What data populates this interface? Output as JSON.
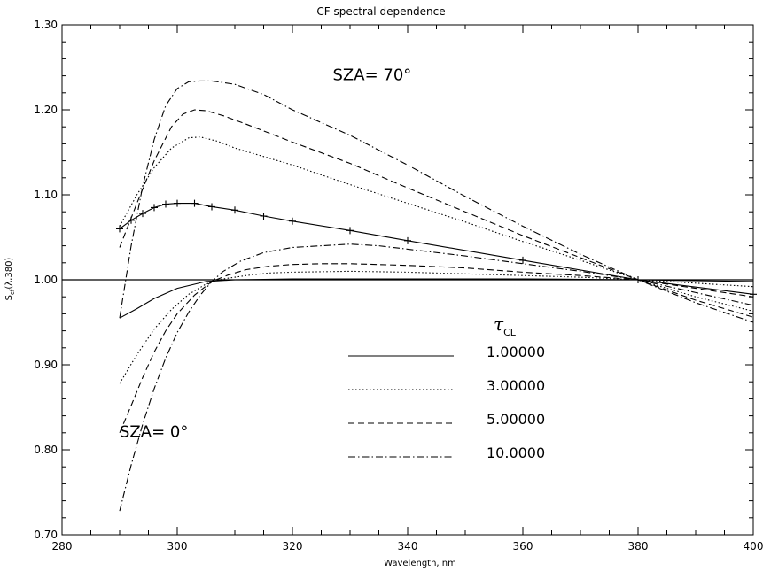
{
  "chart_data": {
    "type": "line",
    "title": "CF spectral dependence",
    "xlabel": "Wavelength, nm",
    "ylabel_main": "S",
    "ylabel_sub": "cf",
    "ylabel_rest": "(λ,380)",
    "xlim": [
      280,
      400
    ],
    "ylim": [
      0.7,
      1.3
    ],
    "xticks": [
      280,
      300,
      320,
      340,
      360,
      380,
      400
    ],
    "yticks": [
      0.7,
      0.8,
      0.9,
      1.0,
      1.1,
      1.2,
      1.3
    ],
    "ytick_labels": [
      "0.70",
      "0.80",
      "0.90",
      "1.00",
      "1.10",
      "1.20",
      "1.30"
    ],
    "reference_line": 1.0,
    "annotations": [
      {
        "text": "SZA= 70°",
        "x": 327,
        "y": 1.235
      },
      {
        "text": "SZA= 0°",
        "x": 290,
        "y": 0.815
      }
    ],
    "legend_title": "τ",
    "legend_title_sub": "CL",
    "series": [
      {
        "name": "1.00000",
        "style": "solid",
        "group": "SZA70",
        "markers": true,
        "x": [
          290,
          292,
          294,
          296,
          298,
          300,
          303,
          306,
          310,
          315,
          320,
          330,
          340,
          360,
          380,
          400
        ],
        "y": [
          1.06,
          1.07,
          1.078,
          1.085,
          1.089,
          1.09,
          1.09,
          1.086,
          1.082,
          1.075,
          1.069,
          1.058,
          1.046,
          1.023,
          1.0,
          0.983
        ]
      },
      {
        "name": "3.00000",
        "style": "dotted",
        "group": "SZA70",
        "x": [
          290,
          293,
          296,
          299,
          302,
          304,
          307,
          310,
          315,
          320,
          330,
          340,
          350,
          360,
          370,
          380,
          390,
          400
        ],
        "y": [
          1.063,
          1.1,
          1.132,
          1.155,
          1.167,
          1.168,
          1.163,
          1.155,
          1.145,
          1.135,
          1.112,
          1.09,
          1.068,
          1.045,
          1.023,
          1.0,
          0.98,
          0.963
        ]
      },
      {
        "name": "5.00000",
        "style": "dashed",
        "group": "SZA70",
        "x": [
          290,
          293,
          296,
          299,
          301,
          303,
          305,
          308,
          312,
          320,
          330,
          340,
          350,
          360,
          370,
          380,
          390,
          400
        ],
        "y": [
          1.038,
          1.09,
          1.14,
          1.18,
          1.195,
          1.2,
          1.199,
          1.193,
          1.183,
          1.162,
          1.137,
          1.108,
          1.08,
          1.052,
          1.026,
          1.0,
          0.976,
          0.956
        ]
      },
      {
        "name": "10.0000",
        "style": "dashdot",
        "group": "SZA70",
        "x": [
          290,
          292,
          294,
          296,
          298,
          300,
          302,
          304,
          306,
          310,
          315,
          320,
          330,
          340,
          350,
          360,
          370,
          380,
          390,
          400
        ],
        "y": [
          0.955,
          1.04,
          1.11,
          1.165,
          1.205,
          1.225,
          1.233,
          1.234,
          1.234,
          1.23,
          1.218,
          1.2,
          1.17,
          1.135,
          1.098,
          1.063,
          1.03,
          1.0,
          0.973,
          0.95
        ]
      },
      {
        "name": "1.00000",
        "style": "solid",
        "group": "SZA0",
        "x": [
          290,
          293,
          296,
          300,
          305,
          310,
          320,
          340,
          360,
          380,
          390,
          400
        ],
        "y": [
          0.955,
          0.966,
          0.978,
          0.99,
          0.998,
          1.0,
          1.001,
          1.001,
          1.001,
          1.0,
          0.999,
          0.998
        ]
      },
      {
        "name": "3.00000",
        "style": "dotted",
        "group": "SZA0",
        "x": [
          290,
          293,
          296,
          299,
          302,
          305,
          308,
          312,
          316,
          320,
          330,
          340,
          350,
          360,
          370,
          380,
          390,
          400
        ],
        "y": [
          0.878,
          0.912,
          0.942,
          0.965,
          0.983,
          0.995,
          1.001,
          1.005,
          1.008,
          1.009,
          1.01,
          1.009,
          1.007,
          1.005,
          1.003,
          1.0,
          0.996,
          0.992
        ]
      },
      {
        "name": "5.00000",
        "style": "dashed",
        "group": "SZA0",
        "x": [
          290,
          292,
          294,
          296,
          298,
          300,
          303,
          306,
          309,
          312,
          316,
          320,
          325,
          330,
          340,
          350,
          360,
          370,
          380,
          390,
          400
        ],
        "y": [
          0.82,
          0.852,
          0.885,
          0.915,
          0.94,
          0.96,
          0.982,
          0.998,
          1.006,
          1.012,
          1.016,
          1.018,
          1.019,
          1.019,
          1.017,
          1.014,
          1.009,
          1.005,
          1.0,
          0.99,
          0.98
        ]
      },
      {
        "name": "10.0000",
        "style": "dashdot",
        "group": "SZA0",
        "x": [
          290,
          292,
          294,
          296,
          298,
          300,
          302,
          304,
          306,
          308,
          311,
          315,
          320,
          325,
          330,
          335,
          340,
          350,
          360,
          370,
          380,
          390,
          400
        ],
        "y": [
          0.728,
          0.782,
          0.83,
          0.872,
          0.908,
          0.938,
          0.962,
          0.982,
          0.998,
          1.01,
          1.022,
          1.032,
          1.038,
          1.04,
          1.042,
          1.04,
          1.036,
          1.028,
          1.019,
          1.01,
          1.0,
          0.985,
          0.97
        ]
      }
    ]
  }
}
